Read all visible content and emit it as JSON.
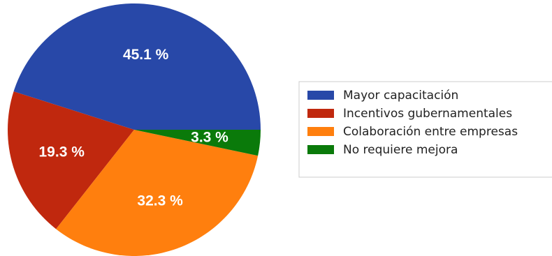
{
  "chart_data": {
    "type": "pie",
    "title": "",
    "legend_position": "right",
    "slices": [
      {
        "label": "Mayor capacitación",
        "value": 45.1,
        "value_label": "45.1 %",
        "color": "#2848a8"
      },
      {
        "label": "Incentivos gubernamentales",
        "value": 19.3,
        "value_label": "19.3 %",
        "color": "#c0280e"
      },
      {
        "label": "Colaboración entre empresas",
        "value": 32.3,
        "value_label": "32.3 %",
        "color": "#ff7f0e"
      },
      {
        "label": "No requiere mejora",
        "value": 3.3,
        "value_label": "3.3 %",
        "color": "#0a7a0a"
      }
    ]
  }
}
